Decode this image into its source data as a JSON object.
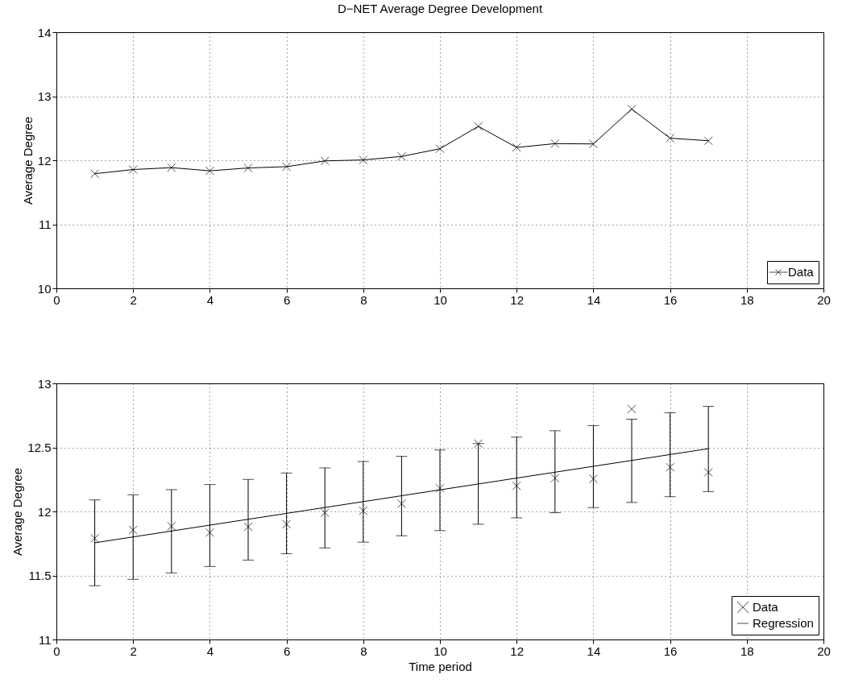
{
  "chart_data": [
    {
      "type": "line",
      "title": "D−NET Average Degree Development",
      "ylabel": "Average Degree",
      "x": [
        1,
        2,
        3,
        4,
        5,
        6,
        7,
        8,
        9,
        10,
        11,
        12,
        13,
        14,
        15,
        16,
        17
      ],
      "series": [
        {
          "name": "Data",
          "color": "#000000",
          "marker": "cross",
          "values": [
            11.79,
            11.855,
            11.885,
            11.835,
            11.88,
            11.9,
            11.99,
            12.005,
            12.06,
            12.18,
            12.53,
            12.2,
            12.26,
            12.255,
            12.8,
            12.345,
            12.305
          ]
        }
      ],
      "xlim": [
        0,
        20
      ],
      "xticks": [
        0,
        2,
        4,
        6,
        8,
        10,
        12,
        14,
        16,
        18,
        20
      ],
      "ylim": [
        10,
        14
      ],
      "yticks": [
        10,
        11,
        12,
        13,
        14
      ],
      "grid": true,
      "legend": "bottom right"
    },
    {
      "type": "scatter",
      "xlabel": "Time period",
      "ylabel": "Average Degree",
      "x": [
        1,
        2,
        3,
        4,
        5,
        6,
        7,
        8,
        9,
        10,
        11,
        12,
        13,
        14,
        15,
        16,
        17
      ],
      "series": [
        {
          "name": "Data",
          "color": "#000000",
          "marker": "cross",
          "values": [
            11.79,
            11.855,
            11.885,
            11.835,
            11.88,
            11.9,
            11.99,
            12.005,
            12.06,
            12.18,
            12.53,
            12.2,
            12.26,
            12.255,
            12.8,
            12.345,
            12.305
          ],
          "errors": [
            [
              11.42,
              12.09
            ],
            [
              11.47,
              12.13
            ],
            [
              11.52,
              12.17
            ],
            [
              11.57,
              12.21
            ],
            [
              11.62,
              12.25
            ],
            [
              11.67,
              12.3
            ],
            [
              11.715,
              12.34
            ],
            [
              11.76,
              12.39
            ],
            [
              11.81,
              12.43
            ],
            [
              11.85,
              12.48
            ],
            [
              11.9,
              12.53
            ],
            [
              11.95,
              12.58
            ],
            [
              11.99,
              12.63
            ],
            [
              12.03,
              12.67
            ],
            [
              12.07,
              12.72
            ],
            [
              12.115,
              12.77
            ],
            [
              12.155,
              12.82
            ]
          ]
        },
        {
          "name": "Regression",
          "type": "line",
          "color": "#000000",
          "marker": "none",
          "x": [
            1,
            17
          ],
          "values": [
            11.755,
            12.49
          ]
        }
      ],
      "xlim": [
        0,
        20
      ],
      "xticks": [
        0,
        2,
        4,
        6,
        8,
        10,
        12,
        14,
        16,
        18,
        20
      ],
      "ylim": [
        11,
        13
      ],
      "yticks": [
        11,
        11.5,
        12,
        12.5,
        13
      ],
      "grid": true,
      "legend": "bottom right"
    }
  ]
}
